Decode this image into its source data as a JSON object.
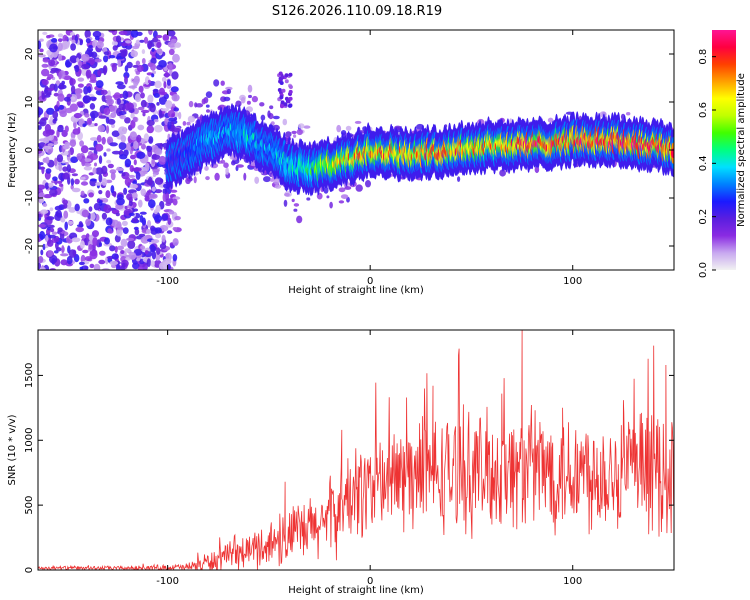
{
  "figure_title": "S126.2026.110.09.18.R19",
  "chart_data": [
    {
      "type": "heatmap",
      "xlabel": "Height of straight line (km)",
      "ylabel": "Frequency (Hz)",
      "xlim": [
        -164,
        150
      ],
      "ylim": [
        -25,
        25
      ],
      "xticks": [
        -100,
        0,
        100
      ],
      "yticks": [
        -20,
        -10,
        0,
        10,
        20
      ],
      "tick_labels_x": [
        "-100",
        "0",
        "100"
      ],
      "tick_labels_y": [
        "-20",
        "-10",
        "0",
        "10",
        "20"
      ],
      "colorbar": {
        "label": "Normalized spectral amplitude",
        "range": [
          0.0,
          0.9
        ],
        "ticks": [
          "0.0",
          "0.2",
          "0.4",
          "0.6",
          "0.8"
        ],
        "tick_values": [
          0.0,
          0.2,
          0.4,
          0.6,
          0.8
        ],
        "colors": [
          "#f2f2f2",
          "#c8a8f0",
          "#8a2be2",
          "#5a1ee0",
          "#1a1aff",
          "#0080ff",
          "#00e0ff",
          "#00ff80",
          "#40ff00",
          "#c0ff00",
          "#ffff00",
          "#ffa000",
          "#ff4000",
          "#ff0040",
          "#ff1493"
        ]
      },
      "ridge": {
        "description_points_x": [
          -100,
          -90,
          -80,
          -70,
          -60,
          -50,
          -40,
          -30,
          -20,
          -10,
          0,
          20,
          40,
          60,
          80,
          100,
          120,
          140,
          150
        ],
        "center_freq": [
          -3,
          -1,
          2,
          4,
          3,
          0,
          -3,
          -4,
          -3,
          -2,
          0,
          -1,
          0,
          1,
          1,
          2,
          2,
          1,
          0
        ],
        "peak_amplitude": [
          0.25,
          0.3,
          0.35,
          0.35,
          0.4,
          0.35,
          0.4,
          0.45,
          0.6,
          0.7,
          0.75,
          0.7,
          0.75,
          0.7,
          0.8,
          0.75,
          0.85,
          0.8,
          0.75
        ]
      }
    },
    {
      "type": "line",
      "xlabel": "Height of straight line (km)",
      "ylabel": "SNR (10 * v/v)",
      "xlim": [
        -164,
        150
      ],
      "ylim": [
        0,
        1850
      ],
      "xticks": [
        -100,
        0,
        100
      ],
      "yticks": [
        0,
        500,
        1000,
        1500
      ],
      "tick_labels_x": [
        "-100",
        "0",
        "100"
      ],
      "tick_labels_y": [
        "0",
        "500",
        "1000",
        "1500"
      ],
      "color": "#ee3333",
      "envelope": {
        "x": [
          -164,
          -120,
          -90,
          -80,
          -70,
          -60,
          -50,
          -40,
          -30,
          -20,
          -10,
          0,
          10,
          20,
          40,
          60,
          75,
          80,
          100,
          120,
          140,
          145,
          150
        ],
        "baseline": [
          15,
          15,
          20,
          60,
          100,
          150,
          200,
          260,
          300,
          400,
          550,
          650,
          700,
          720,
          750,
          760,
          780,
          780,
          760,
          760,
          760,
          740,
          740
        ],
        "spread": [
          15,
          15,
          30,
          80,
          100,
          130,
          180,
          220,
          250,
          300,
          350,
          380,
          400,
          420,
          430,
          450,
          450,
          450,
          450,
          450,
          450,
          450,
          450
        ]
      },
      "spikes": [
        {
          "x": -42,
          "y": 680
        },
        {
          "x": -14,
          "y": 1080
        },
        {
          "x": 18,
          "y": 1330
        },
        {
          "x": 31,
          "y": 1420
        },
        {
          "x": 65,
          "y": 1360
        },
        {
          "x": 75,
          "y": 1860
        },
        {
          "x": 95,
          "y": 1250
        },
        {
          "x": 125,
          "y": 1310
        },
        {
          "x": 140,
          "y": 1730
        },
        {
          "x": 146,
          "y": 1580
        }
      ]
    }
  ]
}
